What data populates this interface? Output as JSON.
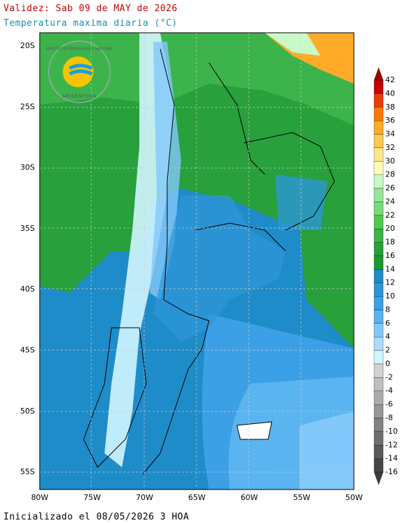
{
  "header": {
    "title": "Validez: Sab 09 de MAY de 2026",
    "subtitle": "Temperatura maxima diaria (°C)"
  },
  "logo": {
    "top_text": "SERVICIO METEOROLOGICO NACIONAL",
    "bottom_text": "ARGENTINA"
  },
  "latitude_labels": [
    "20S",
    "25S",
    "30S",
    "35S",
    "40S",
    "45S",
    "50S",
    "55S"
  ],
  "longitude_labels": [
    "80W",
    "75W",
    "70W",
    "65W",
    "60W",
    "55W",
    "50W"
  ],
  "colorbar": {
    "labels": [
      42,
      40,
      38,
      36,
      34,
      32,
      30,
      28,
      26,
      24,
      22,
      20,
      18,
      16,
      14,
      12,
      10,
      8,
      6,
      4,
      2,
      0,
      -2,
      -4,
      -6,
      -8,
      -10,
      -12,
      -14,
      -16
    ],
    "band_colors": [
      "#c80000",
      "#f03c00",
      "#ff7800",
      "#ffaa28",
      "#ffc850",
      "#ffe68c",
      "#ffffbe",
      "#c8fac8",
      "#96e696",
      "#78dc78",
      "#50c850",
      "#3cb44b",
      "#28a03c",
      "#1e9632",
      "#1e8cc8",
      "#2d96d7",
      "#3ca0e6",
      "#5ab4f0",
      "#82c8fa",
      "#aadcff",
      "#d2f5ff",
      "#d2d2d2",
      "#bebebe",
      "#aaaaaa",
      "#969696",
      "#828282",
      "#6e6e6e",
      "#5a5a5a",
      "#464646"
    ],
    "over_color": "#a00000",
    "under_color": "#3c3c3c"
  },
  "footer": "Inicializado el 08/05/2026 3 HOA"
}
